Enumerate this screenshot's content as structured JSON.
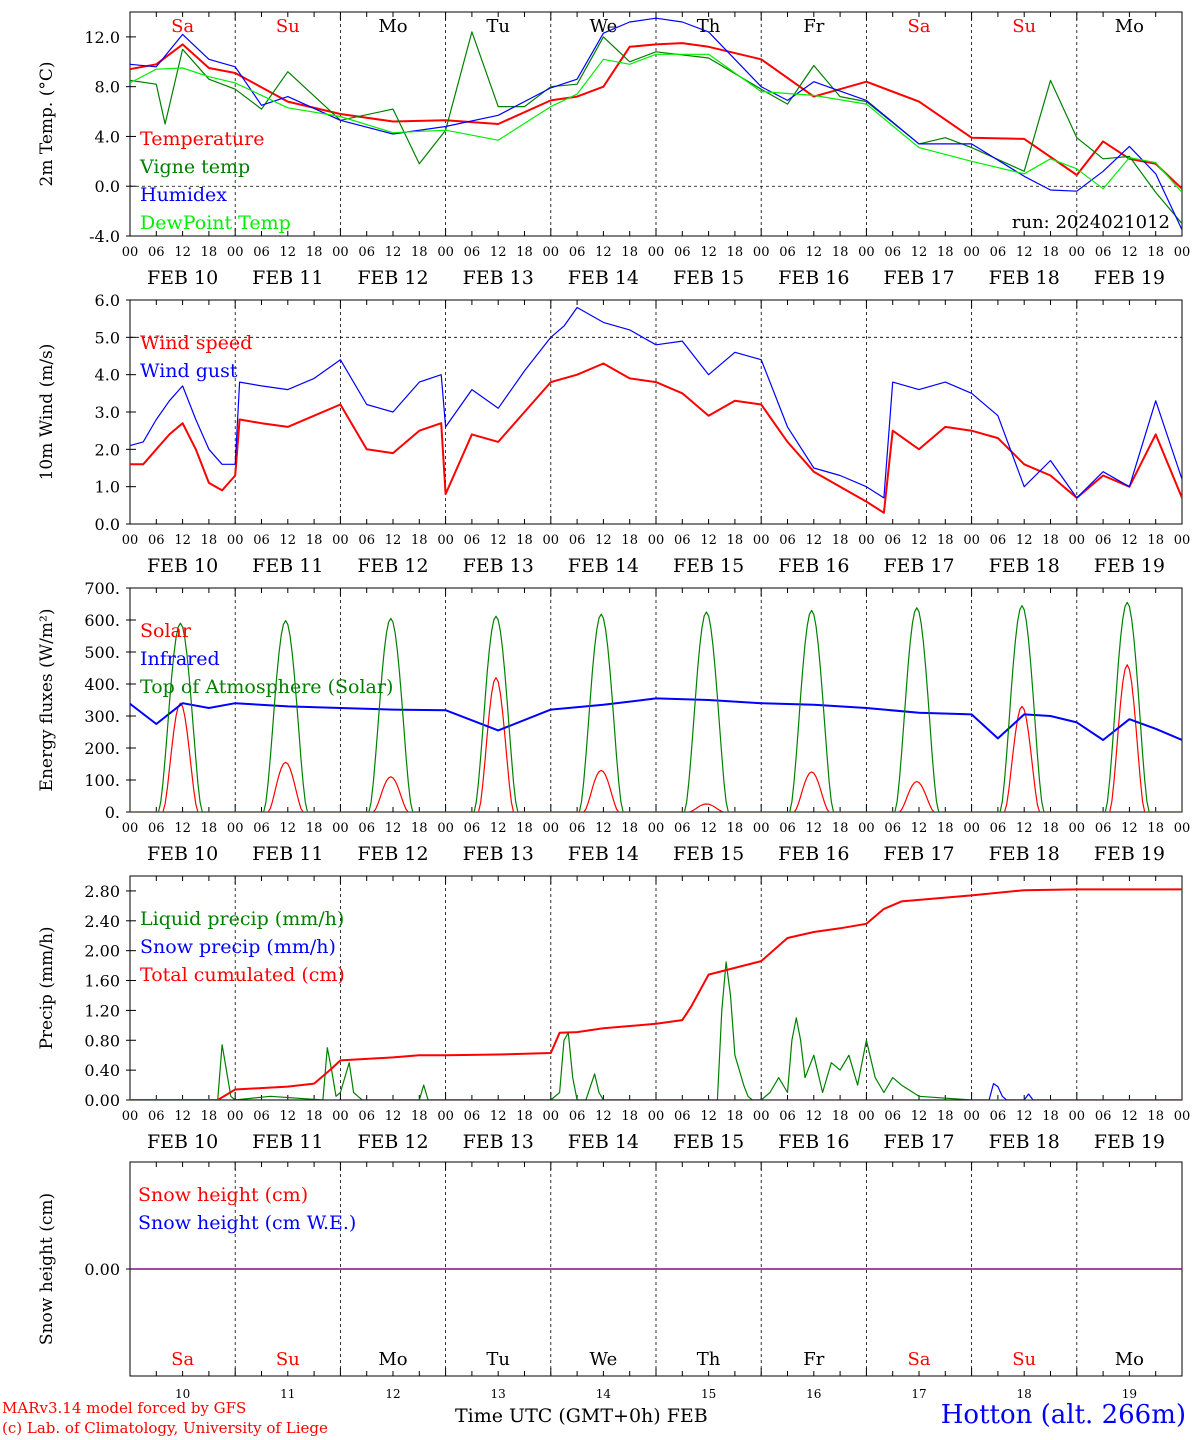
{
  "run_label": "run: 2024021012",
  "station_label": "Hotton (alt. 266m)",
  "footer": {
    "model_line": "MARv3.14 model forced by GFS",
    "credit_line": "(c) Lab. of Climatology, University of Liege",
    "time_axis_label": "Time UTC (GMT+0h)",
    "month_label": "FEB"
  },
  "colors": {
    "red": "#ff0000",
    "green": "#008000",
    "blue": "#0000ff",
    "light_green": "#00ee00",
    "purple": "#800080",
    "weekend": "#ff0000",
    "weekday": "#000000"
  },
  "days": [
    {
      "abbr": "Sa",
      "date": "FEB 10",
      "num": "10",
      "weekend": true
    },
    {
      "abbr": "Su",
      "date": "FEB 11",
      "num": "11",
      "weekend": true
    },
    {
      "abbr": "Mo",
      "date": "FEB 12",
      "num": "12",
      "weekend": false
    },
    {
      "abbr": "Tu",
      "date": "FEB 13",
      "num": "13",
      "weekend": false
    },
    {
      "abbr": "We",
      "date": "FEB 14",
      "num": "14",
      "weekend": false
    },
    {
      "abbr": "Th",
      "date": "FEB 15",
      "num": "15",
      "weekend": false
    },
    {
      "abbr": "Fr",
      "date": "FEB 16",
      "num": "16",
      "weekend": false
    },
    {
      "abbr": "Sa",
      "date": "FEB 17",
      "num": "17",
      "weekend": true
    },
    {
      "abbr": "Su",
      "date": "FEB 18",
      "num": "18",
      "weekend": true
    },
    {
      "abbr": "Mo",
      "date": "FEB 19",
      "num": "19",
      "weekend": false
    }
  ],
  "hour_ticks": [
    "00",
    "06",
    "12",
    "18"
  ],
  "final_hour_tick": "00",
  "chart_data": [
    {
      "type": "line",
      "ylabel": "2m Temp. (°C)",
      "ylim": [
        -4,
        14
      ],
      "y_ticks": [
        "-4.0",
        "0.0",
        "4.0",
        "8.0",
        "12.0"
      ],
      "y_tick_values": [
        -4,
        0,
        4,
        8,
        12
      ],
      "reference_lines": [
        0
      ],
      "series": [
        {
          "name": "Temperature",
          "color": "#ff0000",
          "x": [
            0,
            6,
            12,
            18,
            24,
            36,
            48,
            60,
            72,
            84,
            96,
            102,
            108,
            114,
            120,
            126,
            132,
            144,
            156,
            168,
            180,
            192,
            204,
            216,
            222,
            228,
            234,
            240
          ],
          "values": [
            9.4,
            9.8,
            11.4,
            9.5,
            9.1,
            6.8,
            5.8,
            5.2,
            5.3,
            5.0,
            6.9,
            7.2,
            8.0,
            11.2,
            11.4,
            11.5,
            11.2,
            10.2,
            7.2,
            8.4,
            6.8,
            3.9,
            3.8,
            0.9,
            3.6,
            2.2,
            1.8,
            -0.2
          ]
        },
        {
          "name": "Vigne temp",
          "color": "#008000",
          "x": [
            0,
            6,
            8,
            12,
            18,
            24,
            30,
            36,
            48,
            60,
            66,
            72,
            78,
            84,
            90,
            96,
            102,
            108,
            114,
            120,
            132,
            144,
            150,
            156,
            162,
            168,
            180,
            186,
            192,
            204,
            210,
            216,
            222,
            228,
            234,
            240
          ],
          "values": [
            8.5,
            8.2,
            5.0,
            11.0,
            8.6,
            7.8,
            6.2,
            9.2,
            5.3,
            6.2,
            1.8,
            4.5,
            12.4,
            6.4,
            6.4,
            8.0,
            8.2,
            12.0,
            10.0,
            10.8,
            10.3,
            7.8,
            6.6,
            9.7,
            7.2,
            6.8,
            3.4,
            3.9,
            3.1,
            1.2,
            8.5,
            3.9,
            2.2,
            2.4,
            -0.5,
            -3.0
          ]
        },
        {
          "name": "Humidex",
          "color": "#0000ff",
          "x": [
            0,
            6,
            12,
            18,
            24,
            30,
            36,
            48,
            60,
            72,
            84,
            96,
            102,
            108,
            114,
            120,
            126,
            132,
            144,
            150,
            156,
            168,
            180,
            192,
            204,
            210,
            216,
            222,
            228,
            234,
            240
          ],
          "values": [
            9.8,
            9.6,
            12.2,
            10.2,
            9.6,
            6.5,
            7.2,
            5.3,
            4.2,
            4.8,
            5.7,
            7.9,
            8.6,
            12.3,
            13.2,
            13.5,
            13.2,
            12.4,
            8.0,
            6.9,
            8.4,
            6.9,
            3.4,
            3.4,
            0.8,
            -0.3,
            -0.4,
            1.2,
            3.2,
            1.0,
            -3.5
          ]
        },
        {
          "name": "DewPoint Temp",
          "color": "#00ee00",
          "x": [
            0,
            6,
            12,
            18,
            24,
            36,
            48,
            60,
            72,
            84,
            96,
            102,
            108,
            114,
            120,
            132,
            144,
            156,
            168,
            180,
            192,
            204,
            210,
            216,
            222,
            228,
            234,
            240
          ],
          "values": [
            8.3,
            9.4,
            9.5,
            8.8,
            8.3,
            6.3,
            5.6,
            4.3,
            4.5,
            3.7,
            6.4,
            7.4,
            10.2,
            9.8,
            10.6,
            10.6,
            7.6,
            7.3,
            6.6,
            3.1,
            2.0,
            1.0,
            2.2,
            1.4,
            -0.2,
            2.3,
            1.9,
            -0.5
          ]
        }
      ]
    },
    {
      "type": "line",
      "ylabel": "10m Wind (m/s)",
      "ylim": [
        0,
        6
      ],
      "y_ticks": [
        "0.0",
        "1.0",
        "2.0",
        "3.0",
        "4.0",
        "5.0",
        "6.0"
      ],
      "y_tick_values": [
        0,
        1,
        2,
        3,
        4,
        5,
        6
      ],
      "reference_lines": [
        5
      ],
      "series": [
        {
          "name": "Wind speed",
          "color": "#ff0000",
          "x": [
            0,
            3,
            6,
            9,
            12,
            15,
            18,
            21,
            24,
            25,
            30,
            36,
            42,
            48,
            54,
            60,
            66,
            71,
            72,
            78,
            84,
            90,
            96,
            102,
            108,
            114,
            120,
            126,
            132,
            138,
            144,
            150,
            156,
            162,
            168,
            172,
            174,
            180,
            186,
            192,
            198,
            204,
            210,
            216,
            222,
            228,
            234,
            240
          ],
          "values": [
            1.6,
            1.6,
            2.0,
            2.4,
            2.7,
            2.0,
            1.1,
            0.9,
            1.3,
            2.8,
            2.7,
            2.6,
            2.9,
            3.2,
            2.0,
            1.9,
            2.5,
            2.7,
            0.8,
            2.4,
            2.2,
            3.0,
            3.8,
            4.0,
            4.3,
            3.9,
            3.8,
            3.5,
            2.9,
            3.3,
            3.2,
            2.2,
            1.4,
            1.0,
            0.6,
            0.3,
            2.5,
            2.0,
            2.6,
            2.5,
            2.3,
            1.6,
            1.3,
            0.7,
            1.3,
            1.0,
            2.4,
            0.7
          ]
        },
        {
          "name": "Wind gust",
          "color": "#0000ff",
          "x": [
            0,
            3,
            6,
            9,
            12,
            15,
            18,
            21,
            24,
            25,
            30,
            36,
            42,
            48,
            54,
            60,
            66,
            71,
            72,
            78,
            84,
            90,
            96,
            99,
            102,
            108,
            114,
            120,
            126,
            132,
            138,
            144,
            150,
            156,
            162,
            168,
            172,
            174,
            180,
            186,
            192,
            198,
            204,
            210,
            216,
            222,
            228,
            234,
            240
          ],
          "values": [
            2.1,
            2.2,
            2.8,
            3.3,
            3.7,
            2.8,
            2.0,
            1.6,
            1.6,
            3.8,
            3.7,
            3.6,
            3.9,
            4.4,
            3.2,
            3.0,
            3.8,
            4.0,
            2.6,
            3.6,
            3.1,
            4.1,
            5.0,
            5.3,
            5.8,
            5.4,
            5.2,
            4.8,
            4.9,
            4.0,
            4.6,
            4.4,
            2.6,
            1.5,
            1.3,
            1.0,
            0.7,
            3.8,
            3.6,
            3.8,
            3.5,
            2.9,
            1.0,
            1.7,
            0.7,
            1.4,
            1.0,
            3.3,
            1.2
          ]
        }
      ]
    },
    {
      "type": "line",
      "ylabel": "Energy fluxes (W/m²)",
      "ylim": [
        0,
        700
      ],
      "y_ticks": [
        "0.",
        "100.",
        "200.",
        "300.",
        "400.",
        "500.",
        "600.",
        "700."
      ],
      "y_tick_values": [
        0,
        100,
        200,
        300,
        400,
        500,
        600,
        700
      ],
      "reference_lines": [],
      "series": [
        {
          "name": "Solar",
          "color": "#ff0000",
          "peaks": [
            340,
            155,
            110,
            420,
            130,
            25,
            125,
            95,
            330,
            460
          ]
        },
        {
          "name": "Infrared",
          "color": "#0000ff",
          "x": [
            0,
            6,
            12,
            18,
            24,
            36,
            48,
            60,
            72,
            84,
            96,
            108,
            120,
            132,
            144,
            156,
            168,
            180,
            192,
            198,
            204,
            210,
            216,
            222,
            228,
            234,
            240
          ],
          "values": [
            338,
            275,
            340,
            325,
            340,
            330,
            325,
            320,
            318,
            255,
            320,
            335,
            355,
            350,
            340,
            335,
            325,
            310,
            305,
            230,
            305,
            300,
            280,
            225,
            290,
            260,
            225
          ]
        },
        {
          "name": "Top of Atmosphere (Solar)",
          "color": "#008000",
          "peaks": [
            590,
            598,
            605,
            612,
            618,
            625,
            630,
            638,
            645,
            655
          ]
        }
      ]
    },
    {
      "type": "line",
      "ylabel": "Precip (mm/h)",
      "ylim": [
        0,
        3
      ],
      "y_ticks": [
        "0.00",
        "0.40",
        "0.80",
        "1.20",
        "1.60",
        "2.00",
        "2.40",
        "2.80"
      ],
      "y_tick_values": [
        0,
        0.4,
        0.8,
        1.2,
        1.6,
        2.0,
        2.4,
        2.8
      ],
      "reference_lines": [],
      "series": [
        {
          "name": "Liquid precip (mm/h)",
          "color": "#008000",
          "x": [
            0,
            20,
            21,
            22,
            23,
            24,
            32,
            44,
            45,
            46,
            47,
            48,
            50,
            51,
            52,
            53,
            54,
            66,
            67,
            68,
            72,
            96,
            98,
            99,
            100,
            101,
            102,
            104,
            106,
            107,
            108,
            112,
            120,
            134,
            135,
            136,
            137,
            138,
            140,
            141,
            142,
            144,
            146,
            148,
            150,
            151,
            152,
            153,
            154,
            156,
            158,
            160,
            162,
            164,
            166,
            168,
            170,
            172,
            174,
            176,
            180,
            192,
            240
          ],
          "values": [
            0,
            0,
            0.74,
            0.4,
            0.05,
            0,
            0.05,
            0,
            0.7,
            0.4,
            0.05,
            0.1,
            0.5,
            0.1,
            0.05,
            0,
            0,
            0,
            0.2,
            0,
            0,
            0,
            0.1,
            0.8,
            0.9,
            0.3,
            0,
            0,
            0.35,
            0.1,
            0,
            0,
            0,
            0,
            1.2,
            1.85,
            1.4,
            0.6,
            0.2,
            0.05,
            0,
            0,
            0.1,
            0.3,
            0.1,
            0.8,
            1.1,
            0.8,
            0.3,
            0.6,
            0.1,
            0.5,
            0.4,
            0.6,
            0.2,
            0.8,
            0.3,
            0.1,
            0.3,
            0.2,
            0.05,
            0,
            0
          ]
        },
        {
          "name": "Snow precip (mm/h)",
          "color": "#0000ff",
          "x": [
            0,
            192,
            196,
            197,
            198,
            199,
            200,
            204,
            205,
            206,
            240
          ],
          "values": [
            0,
            0,
            0,
            0.22,
            0.18,
            0.05,
            0,
            0,
            0.08,
            0,
            0
          ]
        },
        {
          "name": "Total cumulated (cm)",
          "color": "#ff0000",
          "x": [
            0,
            20,
            24,
            36,
            42,
            46,
            48,
            60,
            66,
            72,
            84,
            96,
            98,
            102,
            108,
            120,
            126,
            128,
            132,
            136,
            144,
            150,
            156,
            162,
            168,
            172,
            176,
            180,
            192,
            204,
            216,
            228,
            240
          ],
          "values": [
            0,
            0,
            0.14,
            0.18,
            0.22,
            0.42,
            0.53,
            0.57,
            0.6,
            0.6,
            0.61,
            0.63,
            0.9,
            0.91,
            0.96,
            1.02,
            1.07,
            1.25,
            1.68,
            1.74,
            1.86,
            2.17,
            2.25,
            2.3,
            2.36,
            2.56,
            2.66,
            2.68,
            2.74,
            2.81,
            2.82,
            2.82,
            2.82
          ]
        }
      ]
    },
    {
      "type": "line",
      "ylabel": "Snow height (cm)",
      "ylim": [
        -1,
        1
      ],
      "y_ticks": [
        "0.00"
      ],
      "y_tick_values": [
        0
      ],
      "reference_lines": [],
      "series": [
        {
          "name": "Snow height (cm)",
          "color": "#ff0000",
          "x": [
            0,
            240
          ],
          "values": [
            0,
            0
          ]
        },
        {
          "name": "Snow height (cm W.E.)",
          "color": "#0000ff",
          "x": [
            0,
            240
          ],
          "values": [
            0,
            0
          ]
        }
      ]
    }
  ]
}
